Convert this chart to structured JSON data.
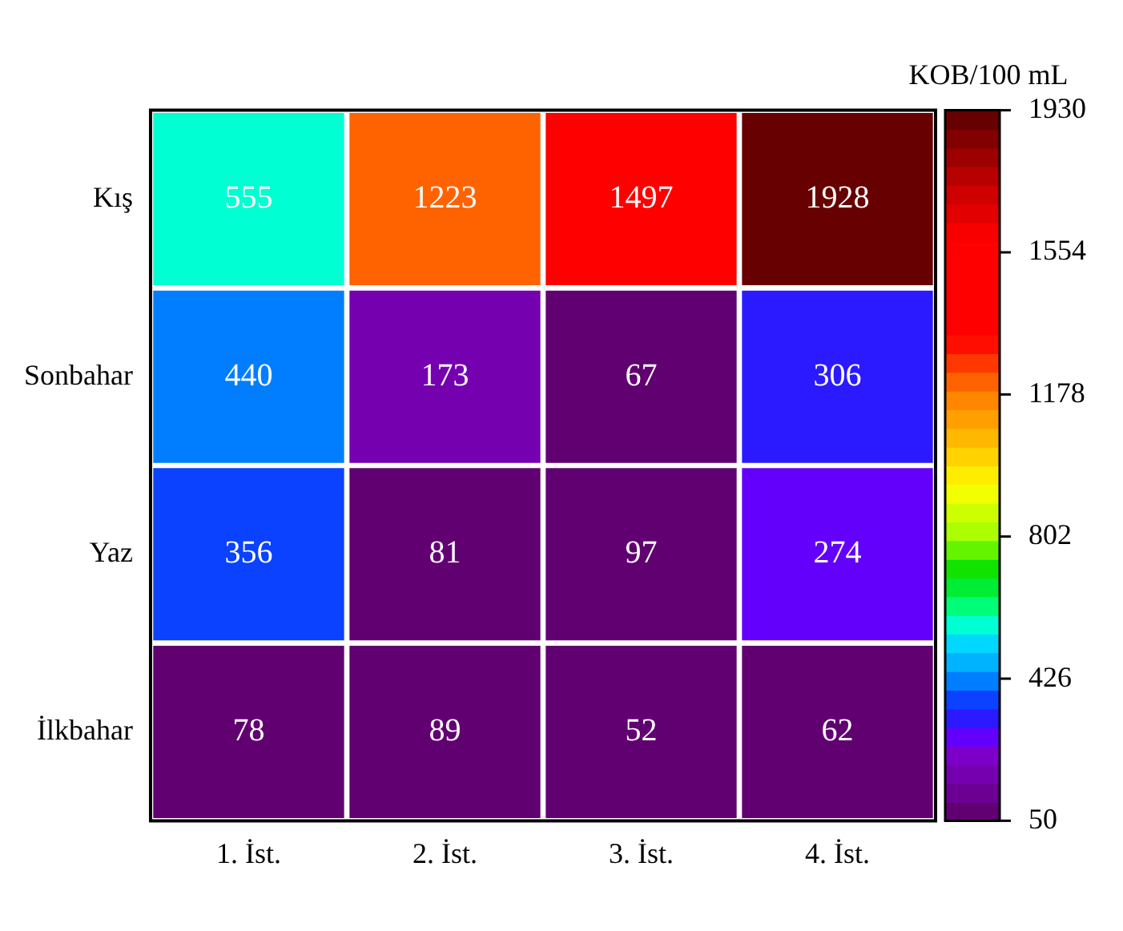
{
  "chart_data": {
    "type": "heatmap",
    "clabel": "KOB/100 mL",
    "categories": [
      "1. İst.",
      "2. İst.",
      "3. İst.",
      "4. İst."
    ],
    "y_categories": [
      "Kış",
      "Sonbahar",
      "Yaz",
      "İlkbahar"
    ],
    "cells": [
      [
        555,
        1223,
        1497,
        1928
      ],
      [
        440,
        173,
        67,
        306
      ],
      [
        356,
        81,
        97,
        274
      ],
      [
        78,
        89,
        52,
        62
      ]
    ],
    "clim": [
      50,
      1930
    ],
    "cticks": [
      50,
      426,
      802,
      1178,
      1554,
      1930
    ],
    "data_labels": true
  }
}
